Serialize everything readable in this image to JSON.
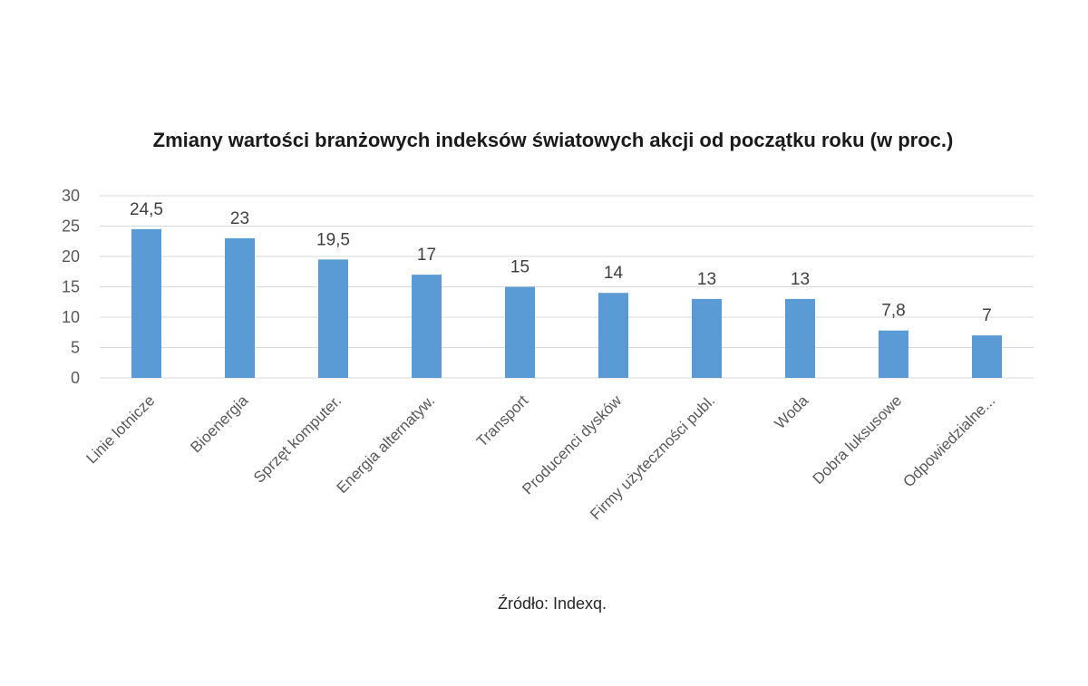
{
  "chart_data": {
    "type": "bar",
    "title": "Zmiany wartości branżowych indeksów światowych akcji od początku roku (w proc.)",
    "categories": [
      "Linie lotnicze",
      "Bioenergia",
      "Sprzęt komputer.",
      "Energia alternatyw.",
      "Transport",
      "Producenci dysków",
      "Firmy użyteczności publ.",
      "Woda",
      "Dobra luksusowe",
      "Odpowiedzialne..."
    ],
    "values": [
      24.5,
      23,
      19.5,
      17,
      15,
      14,
      13,
      13,
      7.8,
      7
    ],
    "data_labels": [
      "24,5",
      "23",
      "19,5",
      "17",
      "15",
      "14",
      "13",
      "13",
      "7,8",
      "7"
    ],
    "y_ticks": [
      "0",
      "5",
      "10",
      "15",
      "20",
      "25",
      "30"
    ],
    "ylim": [
      0,
      30
    ],
    "grid": true,
    "bar_color": "#5b9bd5"
  },
  "source": "Źródło: Indexq."
}
